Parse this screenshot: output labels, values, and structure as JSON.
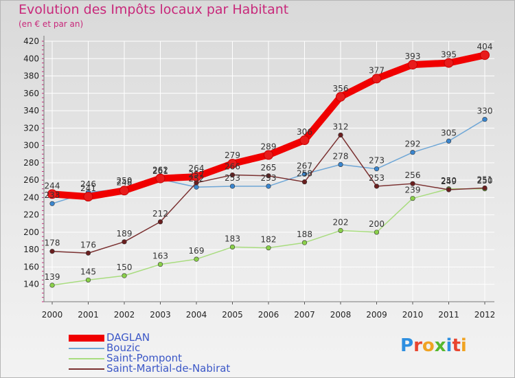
{
  "header": {
    "title": "Evolution des Impôts locaux par Habitant",
    "subtitle": "(en € et par an)"
  },
  "colors": {
    "title": "#c8287a",
    "grid": "#ffffff",
    "axis_text": "#222222",
    "legend_text": "#3b57c7"
  },
  "logo": {
    "letters": [
      "P",
      "r",
      "o",
      "x",
      "i",
      "t",
      "i"
    ],
    "colors": [
      "#2e8fe0",
      "#e8452f",
      "#f0a323",
      "#56b82e",
      "#2e8fe0",
      "#e8452f",
      "#f0a323"
    ]
  },
  "chart_data": {
    "type": "line",
    "title": "Evolution des Impôts locaux par Habitant",
    "subtitle": "(en € et par an)",
    "xlabel": "",
    "ylabel": "",
    "categories": [
      "2000",
      "2001",
      "2002",
      "2003",
      "2004",
      "2005",
      "2006",
      "2007",
      "2008",
      "2009",
      "2010",
      "2011",
      "2012"
    ],
    "ylim": [
      120,
      420
    ],
    "yticks": [
      140,
      160,
      180,
      200,
      220,
      240,
      260,
      280,
      300,
      320,
      340,
      360,
      380,
      400,
      420
    ],
    "grid": true,
    "legend_position": "bottom-left",
    "series": [
      {
        "name": "DAGLAN",
        "color": "#f00000",
        "marker": "#e81b1b",
        "stroke": "thick",
        "values": [
          244,
          241,
          248,
          262,
          264,
          279,
          289,
          306,
          356,
          377,
          393,
          395,
          404
        ]
      },
      {
        "name": "Bouzic",
        "color": "#6ea6d6",
        "marker": "#3a86cf",
        "stroke": "thin",
        "values": [
          233,
          246,
          250,
          261,
          252,
          253,
          253,
          267,
          278,
          273,
          292,
          305,
          330
        ]
      },
      {
        "name": "Saint-Pompont",
        "color": "#a8dc7e",
        "marker": "#8bd14a",
        "stroke": "thin",
        "values": [
          139,
          145,
          150,
          163,
          169,
          183,
          182,
          188,
          202,
          200,
          239,
          250,
          250
        ]
      },
      {
        "name": "Saint-Martial-de-Nabirat",
        "color": "#7a3030",
        "marker": "#6b1f1f",
        "stroke": "thin",
        "values": [
          178,
          176,
          189,
          212,
          257,
          266,
          265,
          258,
          312,
          253,
          256,
          249,
          251
        ]
      }
    ]
  }
}
